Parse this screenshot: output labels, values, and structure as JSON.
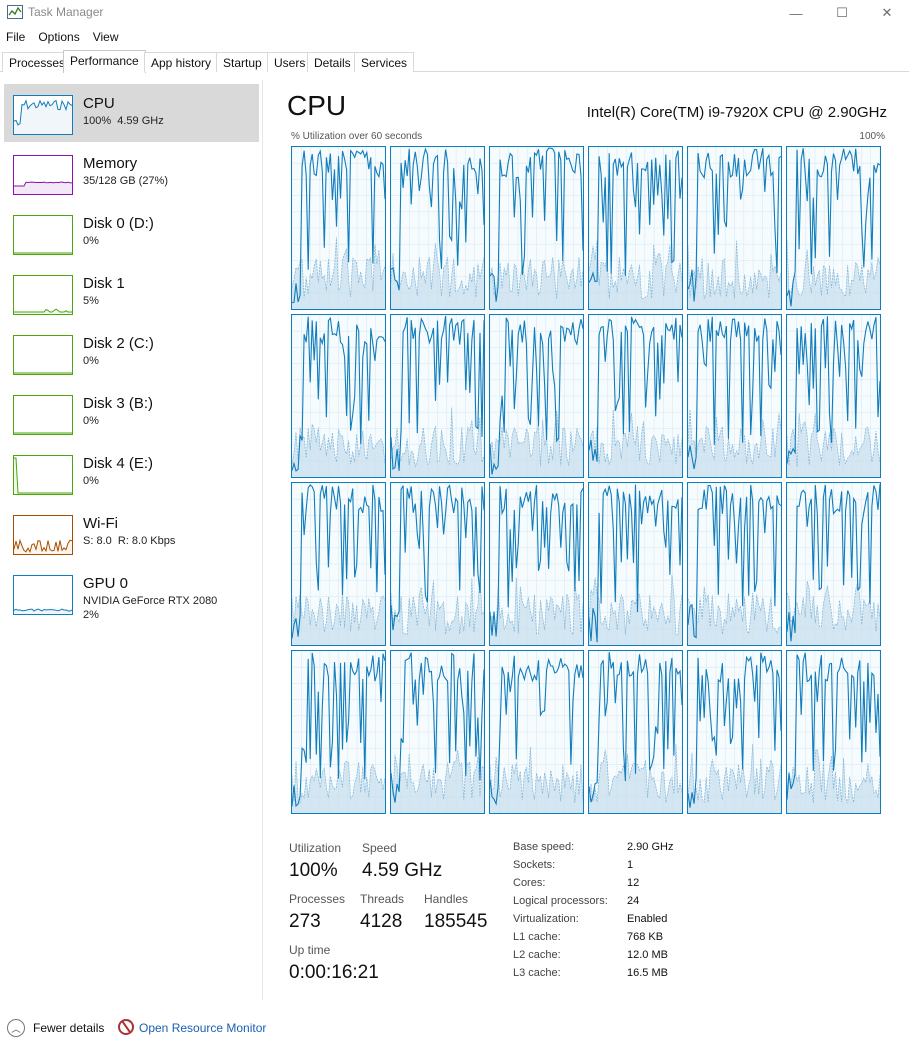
{
  "window": {
    "title": "Task Manager",
    "controls": {
      "minimize": "—",
      "maximize": "☐",
      "close": "✕"
    }
  },
  "menu": [
    "File",
    "Options",
    "View"
  ],
  "tabs": [
    {
      "label": "Processes",
      "active": false
    },
    {
      "label": "Performance",
      "active": true
    },
    {
      "label": "App history",
      "active": false
    },
    {
      "label": "Startup",
      "active": false
    },
    {
      "label": "Users",
      "active": false
    },
    {
      "label": "Details",
      "active": false
    },
    {
      "label": "Services",
      "active": false
    }
  ],
  "sidebar": [
    {
      "name": "CPU",
      "sub": "100%  4.59 GHz",
      "color": "#117dbb",
      "fill": "#f1f6fa",
      "selected": true,
      "icon": "cpu-graph"
    },
    {
      "name": "Memory",
      "sub": "35/128 GB (27%)",
      "color": "#8b12ae",
      "fill": "#f3e9f6",
      "selected": false,
      "icon": "memory-graph"
    },
    {
      "name": "Disk 0 (D:)",
      "sub": "0%",
      "color": "#4da60c",
      "fill": "#eff7ea",
      "selected": false,
      "icon": "disk-graph"
    },
    {
      "name": "Disk 1",
      "sub": "5%",
      "color": "#4da60c",
      "fill": "#eff7ea",
      "selected": false,
      "icon": "disk-graph"
    },
    {
      "name": "Disk 2 (C:)",
      "sub": "0%",
      "color": "#4da60c",
      "fill": "#eff7ea",
      "selected": false,
      "icon": "disk-graph"
    },
    {
      "name": "Disk 3 (B:)",
      "sub": "0%",
      "color": "#4da60c",
      "fill": "#eff7ea",
      "selected": false,
      "icon": "disk-graph"
    },
    {
      "name": "Disk 4 (E:)",
      "sub": "0%",
      "color": "#4da60c",
      "fill": "#eff7ea",
      "selected": false,
      "icon": "disk-graph"
    },
    {
      "name": "Wi-Fi",
      "sub": "S: 8.0  R: 8.0 Kbps",
      "color": "#a74f01",
      "fill": "#fcf3eb",
      "selected": false,
      "icon": "network-graph"
    },
    {
      "name": "GPU 0",
      "sub": "NVIDIA GeForce RTX 2080\n2%",
      "color": "#117dbb",
      "fill": "#f1f6fa",
      "selected": false,
      "icon": "gpu-graph"
    }
  ],
  "main": {
    "title": "CPU",
    "model": "Intel(R) Core(TM) i9-7920X CPU @ 2.90GHz",
    "graph_label": "% Utilization over 60 seconds",
    "graph_max": "100%",
    "logical_processors": 24,
    "line_color": "#117dbb"
  },
  "stats": {
    "utilization_label": "Utilization",
    "utilization": "100%",
    "speed_label": "Speed",
    "speed": "4.59 GHz",
    "processes_label": "Processes",
    "processes": "273",
    "threads_label": "Threads",
    "threads": "4128",
    "handles_label": "Handles",
    "handles": "185545",
    "uptime_label": "Up time",
    "uptime": "0:00:16:21"
  },
  "specs": [
    {
      "label": "Base speed:",
      "value": "2.90 GHz"
    },
    {
      "label": "Sockets:",
      "value": "1"
    },
    {
      "label": "Cores:",
      "value": "12"
    },
    {
      "label": "Logical processors:",
      "value": "24"
    },
    {
      "label": "Virtualization:",
      "value": "Enabled"
    },
    {
      "label": "L1 cache:",
      "value": "768 KB"
    },
    {
      "label": "L2 cache:",
      "value": "12.0 MB"
    },
    {
      "label": "L3 cache:",
      "value": "16.5 MB"
    }
  ],
  "footer": {
    "fewer_details": "Fewer details",
    "resource_monitor": "Open Resource Monitor"
  }
}
